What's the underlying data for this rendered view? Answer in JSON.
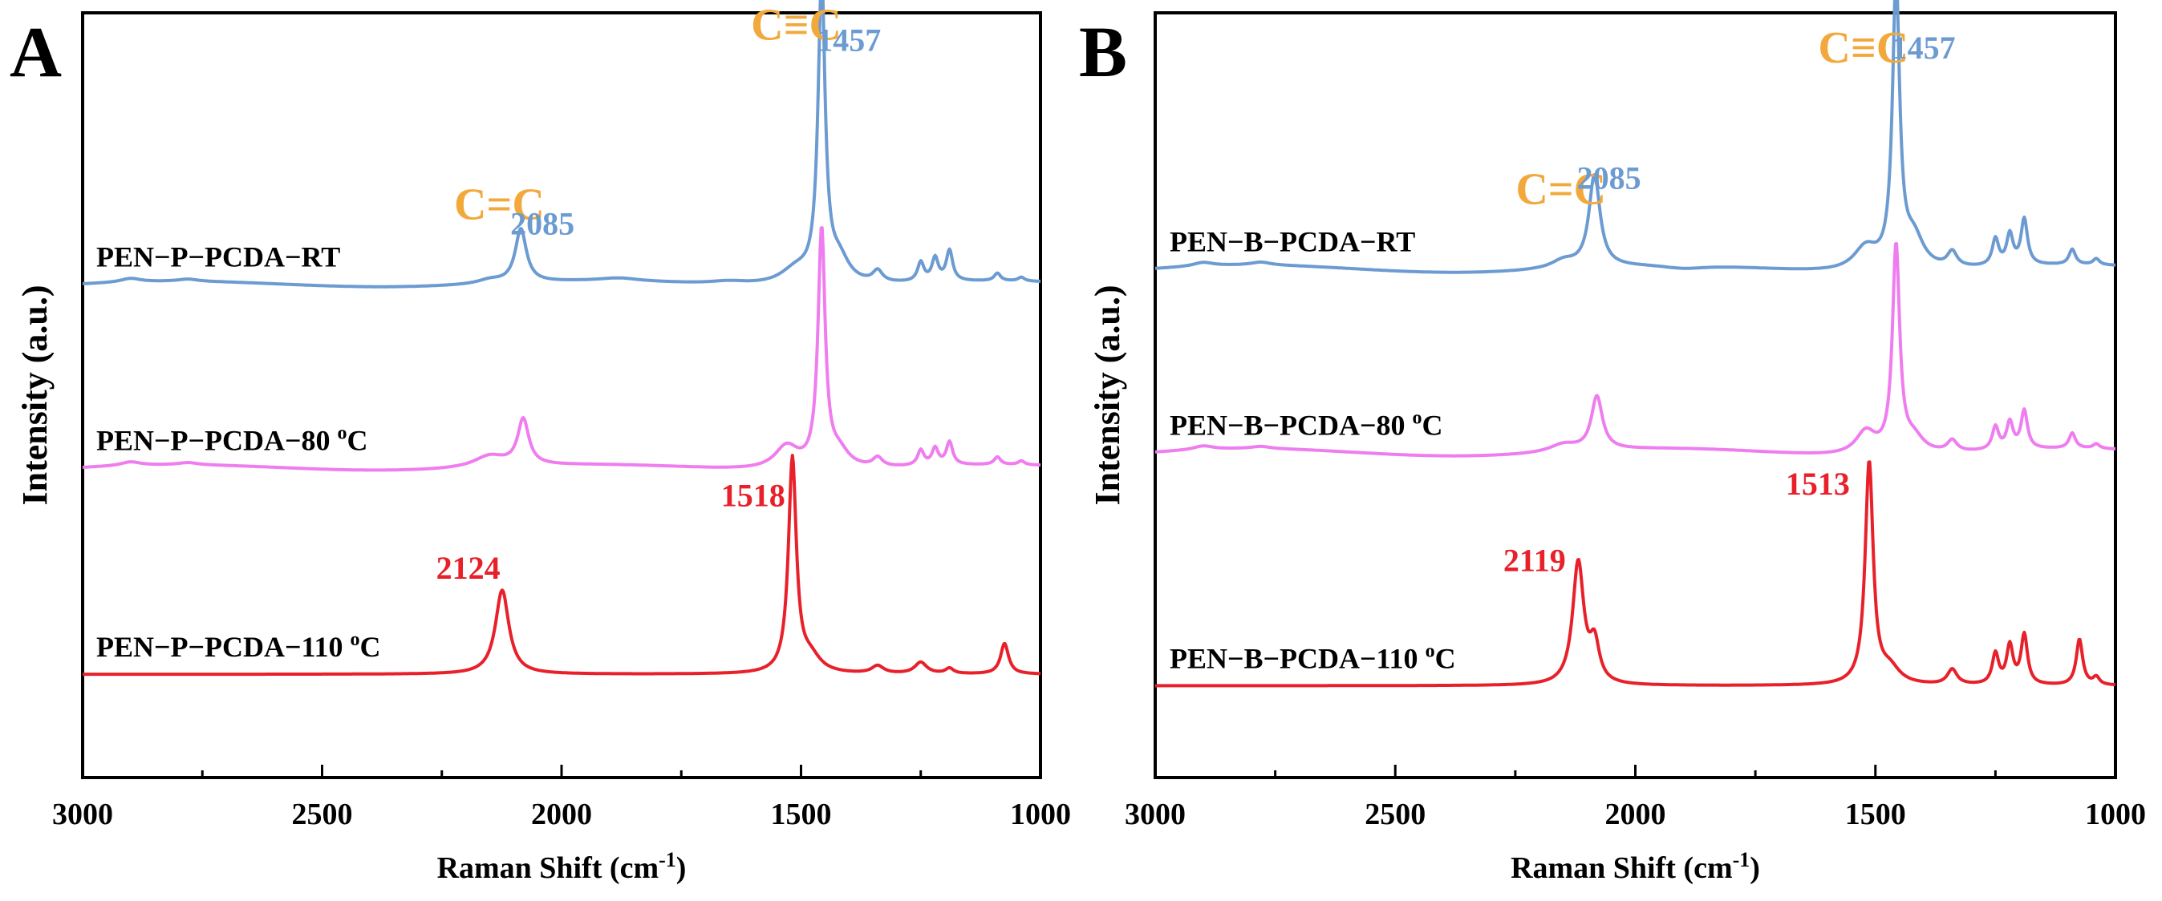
{
  "chart_data": [
    {
      "panel_label": "A",
      "type": "line",
      "xlabel": "Raman Shift",
      "xunit": "(cm",
      "xunit_exp": "-1",
      "xunit_close": ")",
      "ylabel": "Intensity (a.u.)",
      "xlim": [
        3000,
        1000
      ],
      "xticks": [
        3000,
        2500,
        2000,
        1500,
        1000
      ],
      "ylim": [
        0,
        100
      ],
      "grid": false,
      "series": [
        {
          "name": "PEN−P−PCDA−RT",
          "label_main": "PEN−P−PCDA−RT",
          "label_sup": "",
          "label_tail": "",
          "color": "#6c9bd2",
          "baseline": 64.5,
          "slope": 0.6,
          "peaks": [
            [
              2900,
              0.5,
              25
            ],
            [
              2780,
              0.3,
              25
            ],
            [
              2150,
              0.5,
              30
            ],
            [
              2085,
              7,
              14
            ],
            [
              1880,
              0.4,
              50
            ],
            [
              1650,
              0.4,
              50
            ],
            [
              1510,
              2,
              40
            ],
            [
              1457,
              39,
              9
            ],
            [
              1420,
              3,
              25
            ],
            [
              1340,
              1.5,
              12
            ],
            [
              1250,
              2.5,
              8
            ],
            [
              1220,
              3,
              8
            ],
            [
              1190,
              4,
              8
            ],
            [
              1090,
              1,
              8
            ],
            [
              1040,
              0.5,
              8
            ]
          ]
        },
        {
          "name": "PEN−P−PCDA−80 oC",
          "label_main": "PEN−P−PCDA−80 ",
          "label_sup": "o",
          "label_tail": "C",
          "color": "#ef7def",
          "baseline": 40.5,
          "slope": 0.6,
          "peaks": [
            [
              2900,
              0.5,
              25
            ],
            [
              2780,
              0.3,
              25
            ],
            [
              2150,
              1.5,
              40
            ],
            [
              2080,
              6,
              14
            ],
            [
              1530,
              3,
              30
            ],
            [
              1457,
              31,
              9
            ],
            [
              1420,
              2,
              25
            ],
            [
              1340,
              1.2,
              12
            ],
            [
              1250,
              2,
              8
            ],
            [
              1220,
              2.2,
              8
            ],
            [
              1190,
              3,
              8
            ],
            [
              1090,
              1,
              8
            ],
            [
              1040,
              0.5,
              8
            ]
          ]
        },
        {
          "name": "PEN−P−PCDA−110 oC",
          "label_main": "PEN−P−PCDA−110 ",
          "label_sup": "o",
          "label_tail": "C",
          "color": "#e8202a",
          "baseline": 13.5,
          "slope": 0,
          "peaks": [
            [
              2124,
              11,
              17
            ],
            [
              1518,
              28,
              10
            ],
            [
              1480,
              2,
              25
            ],
            [
              1340,
              1,
              15
            ],
            [
              1250,
              1.5,
              15
            ],
            [
              1190,
              0.7,
              10
            ],
            [
              1075,
              4,
              10
            ]
          ]
        }
      ],
      "annotations": [
        {
          "text": "C≡C",
          "color": "#f2a83b",
          "x": 1510,
          "y": 96.5
        },
        {
          "text": "1457",
          "color": "#6c9bd2",
          "x": 1400,
          "y": 95
        },
        {
          "text": "C=C",
          "color": "#f2a83b",
          "x": 2130,
          "y": 73
        },
        {
          "text": "2085",
          "color": "#6c9bd2",
          "x": 2040,
          "y": 71
        },
        {
          "text": "1518",
          "color": "#e8202a",
          "x": 1600,
          "y": 35.5
        },
        {
          "text": "2124",
          "color": "#e8202a",
          "x": 2195,
          "y": 26
        }
      ]
    },
    {
      "panel_label": "B",
      "type": "line",
      "xlabel": "Raman Shift",
      "xunit": "(cm",
      "xunit_exp": "-1",
      "xunit_close": ")",
      "ylabel": "Intensity (a.u.)",
      "xlim": [
        3000,
        1000
      ],
      "xticks": [
        3000,
        2500,
        2000,
        1500,
        1000
      ],
      "ylim": [
        0,
        100
      ],
      "grid": false,
      "series": [
        {
          "name": "PEN−B−PCDA−RT",
          "label_main": "PEN−B−PCDA−RT",
          "label_sup": "",
          "label_tail": "",
          "color": "#6c9bd2",
          "baseline": 66.5,
          "slope": 0.8,
          "peaks": [
            [
              2900,
              0.5,
              25
            ],
            [
              2780,
              0.4,
              25
            ],
            [
              2150,
              1,
              30
            ],
            [
              2085,
              12,
              14
            ],
            [
              1900,
              -0.5,
              60
            ],
            [
              1520,
              3,
              30
            ],
            [
              1457,
              37,
              9
            ],
            [
              1420,
              4,
              25
            ],
            [
              1340,
              2,
              12
            ],
            [
              1250,
              3.5,
              8
            ],
            [
              1220,
              4,
              8
            ],
            [
              1190,
              6,
              8
            ],
            [
              1090,
              2,
              8
            ],
            [
              1040,
              0.8,
              8
            ]
          ]
        },
        {
          "name": "PEN−B−PCDA−80 oC",
          "label_main": "PEN−B−PCDA−80 ",
          "label_sup": "o",
          "label_tail": "C",
          "color": "#ef7def",
          "baseline": 42.5,
          "slope": 0.8,
          "peaks": [
            [
              2900,
              0.5,
              25
            ],
            [
              2780,
              0.3,
              25
            ],
            [
              2150,
              1,
              35
            ],
            [
              2080,
              7,
              14
            ],
            [
              1520,
              3,
              25
            ],
            [
              1457,
              27,
              9
            ],
            [
              1420,
              2,
              25
            ],
            [
              1340,
              1.5,
              12
            ],
            [
              1250,
              3,
              8
            ],
            [
              1220,
              3.5,
              8
            ],
            [
              1190,
              5,
              8
            ],
            [
              1090,
              2,
              8
            ],
            [
              1040,
              0.6,
              8
            ]
          ]
        },
        {
          "name": "PEN−B−PCDA−110 oC",
          "label_main": "PEN−B−PCDA−110 ",
          "label_sup": "o",
          "label_tail": "C",
          "color": "#e8202a",
          "baseline": 12,
          "slope": 0,
          "peaks": [
            [
              2119,
              16,
              14
            ],
            [
              2085,
              5,
              12
            ],
            [
              1513,
              29,
              10
            ],
            [
              1470,
              2,
              25
            ],
            [
              1340,
              2,
              12
            ],
            [
              1250,
              4,
              8
            ],
            [
              1220,
              5,
              8
            ],
            [
              1190,
              6.5,
              8
            ],
            [
              1075,
              6,
              8
            ],
            [
              1040,
              1,
              8
            ]
          ]
        }
      ],
      "annotations": [
        {
          "text": "C≡C",
          "color": "#f2a83b",
          "x": 1525,
          "y": 93.5
        },
        {
          "text": "1457",
          "color": "#6c9bd2",
          "x": 1400,
          "y": 94
        },
        {
          "text": "C=C",
          "color": "#f2a83b",
          "x": 2155,
          "y": 75
        },
        {
          "text": "2085",
          "color": "#6c9bd2",
          "x": 2055,
          "y": 77
        },
        {
          "text": "1513",
          "color": "#e8202a",
          "x": 1620,
          "y": 37
        },
        {
          "text": "2119",
          "color": "#e8202a",
          "x": 2210,
          "y": 27
        }
      ]
    }
  ]
}
